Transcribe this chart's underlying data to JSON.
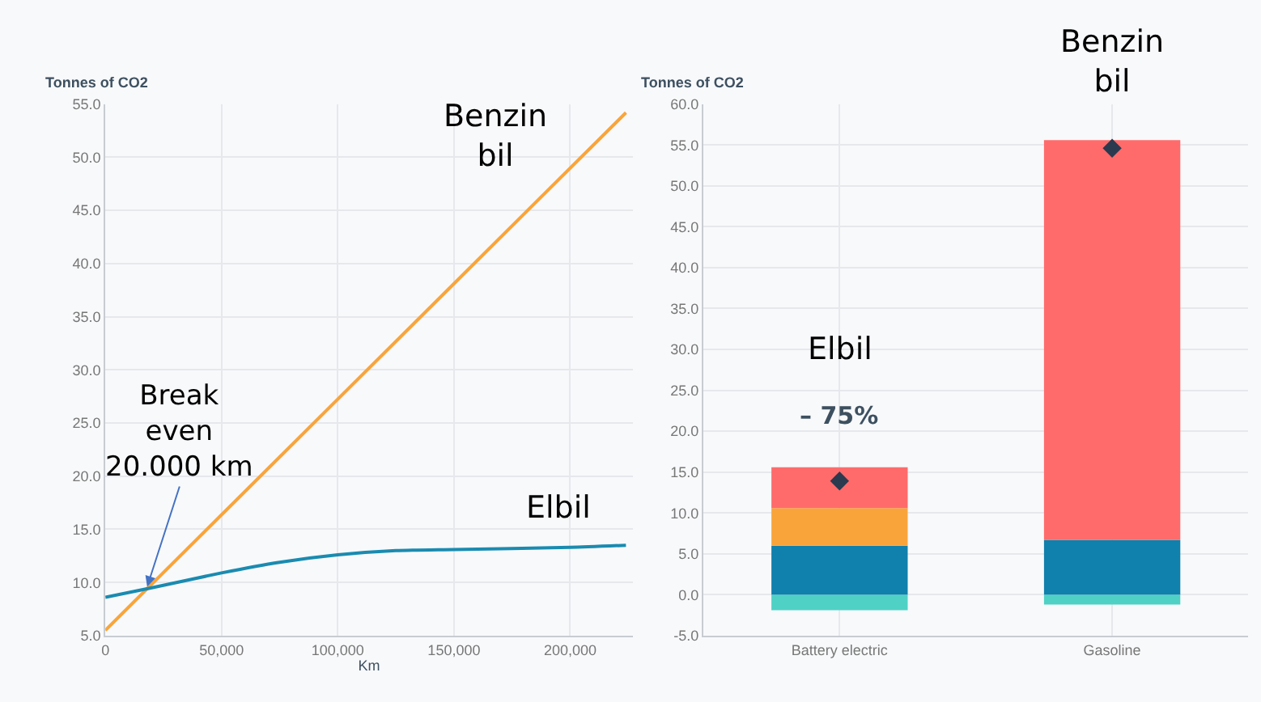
{
  "chart_data": [
    {
      "type": "line",
      "ylabel": "Tonnes of CO2",
      "xlabel": "Km",
      "xlim": [
        0,
        227000
      ],
      "xticks": [
        {
          "value": 0,
          "label": "0"
        },
        {
          "value": 50000,
          "label": "50,000"
        },
        {
          "value": 100000,
          "label": "100,000"
        },
        {
          "value": 150000,
          "label": "150,000"
        },
        {
          "value": 200000,
          "label": "200,000"
        }
      ],
      "ylim": [
        5,
        55
      ],
      "yticks": [
        {
          "value": 5,
          "label": "5.0"
        },
        {
          "value": 10,
          "label": "10.0"
        },
        {
          "value": 15,
          "label": "15.0"
        },
        {
          "value": 20,
          "label": "20.0"
        },
        {
          "value": 25,
          "label": "25.0"
        },
        {
          "value": 30,
          "label": "30.0"
        },
        {
          "value": 35,
          "label": "35.0"
        },
        {
          "value": 40,
          "label": "40.0"
        },
        {
          "value": 45,
          "label": "45.0"
        },
        {
          "value": 50,
          "label": "50.0"
        },
        {
          "value": 55,
          "label": "55.0"
        }
      ],
      "grid": true,
      "marker": "none",
      "line_style": "solid",
      "series": [
        {
          "color": "#f9a43b",
          "x": [
            0,
            224000
          ],
          "values": [
            5.5,
            54.2
          ]
        },
        {
          "color": "#1a8bb0",
          "x": [
            0,
            20000,
            50000,
            75000,
            100000,
            125000,
            150000,
            200000,
            224000
          ],
          "values": [
            8.6,
            9.5,
            10.9,
            11.9,
            12.6,
            13.0,
            13.1,
            13.3,
            13.5
          ]
        }
      ],
      "annotations": [
        {
          "text": "Break\neven\n20.000 km",
          "x": 18000,
          "y": 9.6
        },
        "Benzin\nbil",
        "Elbil"
      ]
    },
    {
      "type": "bar",
      "stacked": true,
      "ylabel": "Tonnes of CO2",
      "categories": [
        "Battery electric",
        "Gasoline"
      ],
      "ylim": [
        -5,
        60
      ],
      "yticks": [
        {
          "value": -5,
          "label": "-5.0"
        },
        {
          "value": 0,
          "label": "0.0"
        },
        {
          "value": 5,
          "label": "5.0"
        },
        {
          "value": 10,
          "label": "10.0"
        },
        {
          "value": 15,
          "label": "15.0"
        },
        {
          "value": 20,
          "label": "20.0"
        },
        {
          "value": 25,
          "label": "25.0"
        },
        {
          "value": 30,
          "label": "30.0"
        },
        {
          "value": 35,
          "label": "35.0"
        },
        {
          "value": 40,
          "label": "40.0"
        },
        {
          "value": 45,
          "label": "45.0"
        },
        {
          "value": 50,
          "label": "50.0"
        },
        {
          "value": 55,
          "label": "55.0"
        },
        {
          "value": 60,
          "label": "60.0"
        }
      ],
      "grid": true,
      "series": [
        {
          "color": "#4fd1c5",
          "values": [
            -1.9,
            -1.2
          ]
        },
        {
          "color": "#1080ac",
          "values": [
            6.0,
            6.7
          ]
        },
        {
          "color": "#f9a43b",
          "values": [
            4.6,
            0
          ]
        },
        {
          "color": "#ff6b6b",
          "values": [
            5.0,
            48.9
          ]
        },
        {
          "type": "scatter",
          "marker": "diamond",
          "color": "#2b3a4f",
          "x": [
            "Battery electric",
            "Gasoline"
          ],
          "values": [
            13.9,
            54.6
          ]
        }
      ],
      "annotations": [
        "Elbil",
        "– 75%",
        "Benzin\nbil"
      ]
    }
  ]
}
